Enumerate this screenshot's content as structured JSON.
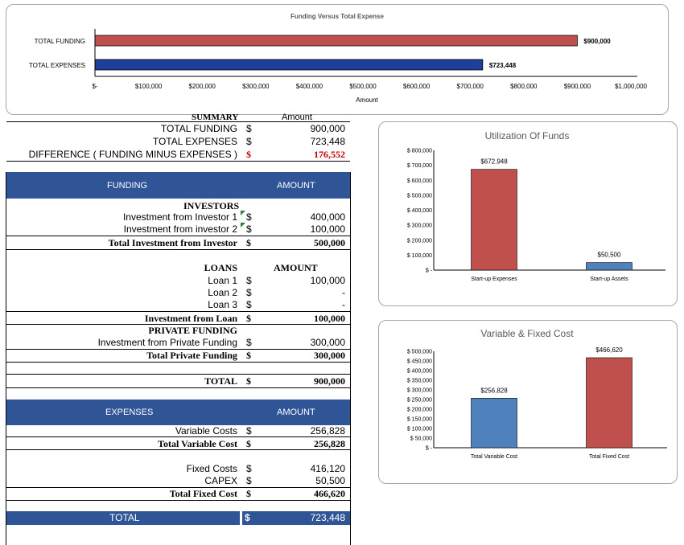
{
  "funding_chart": {
    "title": "Funding Versus Total Expense",
    "xlabel": "Amount",
    "categories": [
      "TOTAL FUNDING",
      "TOTAL EXPENSES"
    ],
    "values": [
      900000,
      723448
    ],
    "value_labels": [
      "$900,000",
      "$723,448"
    ],
    "colors": [
      "#c0504d",
      "#1f3f9a"
    ],
    "xlim": [
      0,
      1000000
    ],
    "ticks": [
      "$-",
      "$100,000",
      "$200,000",
      "$300,000",
      "$400,000",
      "$500,000",
      "$600,000",
      "$700,000",
      "$800,000",
      "$900,000",
      "$1,000,000"
    ]
  },
  "summary": {
    "header_label": "SUMMARY",
    "header_amount": "Amount",
    "rows": [
      {
        "label": "TOTAL FUNDING",
        "cur": "$",
        "value": "900,000"
      },
      {
        "label": "TOTAL EXPENSES",
        "cur": "$",
        "value": "723,448"
      },
      {
        "label": "DIFFERENCE  ( FUNDING MINUS EXPENSES )",
        "cur": "$",
        "value": "176,552"
      }
    ]
  },
  "funding_table": {
    "header_label": "FUNDING",
    "header_amount": "AMOUNT",
    "investors_title": "INVESTORS",
    "investor1_label": "Investment from Investor 1",
    "investor1_cur": "$",
    "investor1_value": "400,000",
    "investor2_label": "Investment from investor 2",
    "investor2_cur": "$",
    "investor2_value": "100,000",
    "total_investor_label": "Total Investment from Investor",
    "total_investor_cur": "$",
    "total_investor_value": "500,000",
    "loans_title": "LOANS",
    "loans_amount": "AMOUNT",
    "loan1_label": "Loan 1",
    "loan1_cur": "$",
    "loan1_value": "100,000",
    "loan2_label": "Loan 2",
    "loan2_cur": "$",
    "loan2_value": "-",
    "loan3_label": "Loan 3",
    "loan3_cur": "$",
    "loan3_value": "-",
    "loan_total_label": "Investment from Loan",
    "loan_total_cur": "$",
    "loan_total_value": "100,000",
    "private_title": "PRIVATE FUNDING",
    "private_label": "Investment from Private Funding",
    "private_cur": "$",
    "private_value": "300,000",
    "private_total_label": "Total Private Funding",
    "private_total_cur": "$",
    "private_total_value": "300,000",
    "total_label": "TOTAL",
    "total_cur": "$",
    "total_value": "900,000"
  },
  "expenses_table": {
    "header_label": "EXPENSES",
    "header_amount": "AMOUNT",
    "variable_label": "Variable Costs",
    "variable_cur": "$",
    "variable_value": "256,828",
    "variable_total_label": "Total Variable Cost",
    "variable_total_cur": "$",
    "variable_total_value": "256,828",
    "fixed_label": "Fixed Costs",
    "fixed_cur": "$",
    "fixed_value": "416,120",
    "capex_label": "CAPEX",
    "capex_cur": "$",
    "capex_value": "50,500",
    "fixed_total_label": "Total Fixed Cost",
    "fixed_total_cur": "$",
    "fixed_total_value": "466,620",
    "total_label": "TOTAL",
    "total_cur": "$",
    "total_value": "723,448"
  },
  "utilization_chart": {
    "title": "Utilization Of Funds",
    "categories": [
      "Start-up Expenses",
      "Start-up Assets"
    ],
    "values": [
      672948,
      50500
    ],
    "value_labels": [
      "$672,948",
      "$50,500"
    ],
    "colors": [
      "#c0504d",
      "#4f81bd"
    ],
    "ylim": [
      0,
      800000
    ],
    "ticks": [
      "$ -",
      "$ 100,000",
      "$ 200,000",
      "$ 300,000",
      "$ 400,000",
      "$ 500,000",
      "$ 600,000",
      "$ 700,000",
      "$ 800,000"
    ]
  },
  "varfixed_chart": {
    "title": "Variable & Fixed Cost",
    "categories": [
      "Total Variable Cost",
      "Total Fixed Cost"
    ],
    "values": [
      256828,
      466620
    ],
    "value_labels": [
      "$256,828",
      "$466,620"
    ],
    "colors": [
      "#4f81bd",
      "#c0504d"
    ],
    "ylim": [
      0,
      500000
    ],
    "ticks": [
      "$ -",
      "$ 50,000",
      "$ 100,000",
      "$ 150,000",
      "$ 200,000",
      "$ 250,000",
      "$ 300,000",
      "$ 350,000",
      "$ 400,000",
      "$ 450,000",
      "$ 500,000"
    ]
  },
  "chart_data": [
    {
      "type": "bar",
      "title": "Funding Versus Total Expense",
      "xlabel": "Amount",
      "categories": [
        "TOTAL FUNDING",
        "TOTAL EXPENSES"
      ],
      "values": [
        900000,
        723448
      ],
      "xlim": [
        0,
        1000000
      ],
      "orientation": "horizontal"
    },
    {
      "type": "bar",
      "title": "Utilization Of Funds",
      "categories": [
        "Start-up Expenses",
        "Start-up Assets"
      ],
      "values": [
        672948,
        50500
      ],
      "ylim": [
        0,
        800000
      ]
    },
    {
      "type": "bar",
      "title": "Variable & Fixed Cost",
      "categories": [
        "Total Variable Cost",
        "Total Fixed Cost"
      ],
      "values": [
        256828,
        466620
      ],
      "ylim": [
        0,
        500000
      ]
    }
  ]
}
